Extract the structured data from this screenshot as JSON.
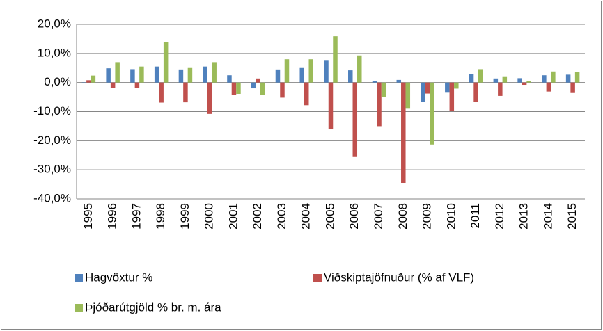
{
  "chart_data": {
    "type": "bar",
    "categories": [
      "1995",
      "1996",
      "1997",
      "1998",
      "1999",
      "2000",
      "2001",
      "2002",
      "2003",
      "2004",
      "2005",
      "2006",
      "2007",
      "2008",
      "2009",
      "2010",
      "2011",
      "2012",
      "2013",
      "2014",
      "2015"
    ],
    "series": [
      {
        "name": "Hagvöxtur %",
        "color": "#4f81bd",
        "values": [
          0.1,
          4.9,
          4.6,
          5.5,
          4.5,
          5.5,
          2.5,
          -2.0,
          4.5,
          5.0,
          7.5,
          4.2,
          0.6,
          0.9,
          -6.6,
          -3.5,
          3.0,
          1.4,
          1.5,
          2.5,
          2.7
        ]
      },
      {
        "name": "Viðskiptajöfnuður (% af VLF)",
        "color": "#c0504d",
        "values": [
          0.8,
          -1.8,
          -1.8,
          -6.9,
          -6.8,
          -10.8,
          -4.3,
          1.4,
          -5.2,
          -7.8,
          -16.1,
          -25.6,
          -15.0,
          -34.5,
          -3.8,
          -9.8,
          -6.6,
          -4.6,
          -0.8,
          -3.1,
          -3.6
        ]
      },
      {
        "name": "Þjóðarútgjöld % br. m. ára",
        "color": "#9bbb59",
        "values": [
          2.4,
          7.0,
          5.5,
          14.0,
          5.0,
          7.0,
          -3.9,
          -4.2,
          8.0,
          8.0,
          15.9,
          9.3,
          -4.9,
          -9.0,
          -21.3,
          -2.1,
          4.6,
          1.9,
          0.4,
          3.8,
          3.6
        ]
      }
    ],
    "ylim": [
      -40,
      20
    ],
    "yticks": [
      {
        "value": -40,
        "label": "-40,0%"
      },
      {
        "value": -30,
        "label": "-30,0%"
      },
      {
        "value": -20,
        "label": "-20,0%"
      },
      {
        "value": -10,
        "label": "-10,0%"
      },
      {
        "value": 0,
        "label": "0,0%"
      },
      {
        "value": 10,
        "label": "10,0%"
      },
      {
        "value": 20,
        "label": "20,0%"
      }
    ],
    "grid": true
  }
}
